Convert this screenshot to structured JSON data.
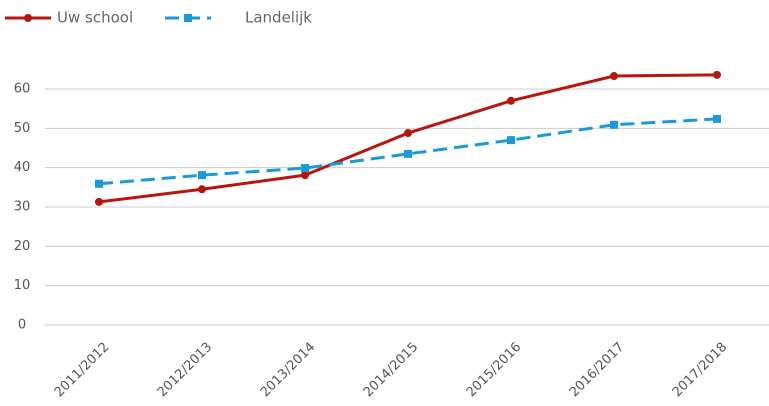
{
  "chart_data": {
    "type": "line",
    "categories": [
      "2011/2012",
      "2012/2013",
      "2013/2014",
      "2014/2015",
      "2015/2016",
      "2016/2017",
      "2017/2018"
    ],
    "series": [
      {
        "name": "Uw school",
        "color": "#b5170f",
        "marker": "circle",
        "dashed": false,
        "values": [
          31.3,
          34.5,
          38.1,
          48.8,
          57,
          63.3,
          63.6
        ]
      },
      {
        "name": "Landelijk",
        "color": "#1a9ad6",
        "marker": "square",
        "dashed": true,
        "values": [
          35.9,
          38.1,
          39.9,
          43.5,
          47,
          50.9,
          52.4
        ]
      }
    ],
    "ylim": [
      0,
      60
    ],
    "yticks": [
      0,
      10,
      20,
      30,
      40,
      50,
      60
    ],
    "grid": true,
    "legend": "top-left"
  }
}
